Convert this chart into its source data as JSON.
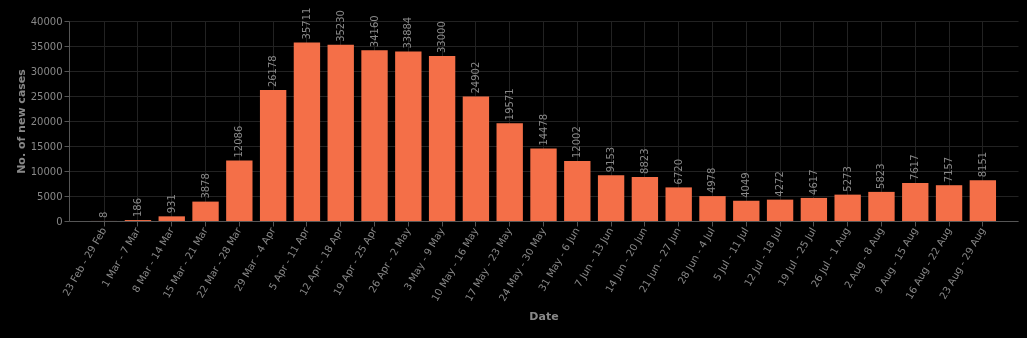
{
  "chart_data": {
    "type": "bar",
    "xlabel": "Date",
    "ylabel": "No. of new cases",
    "categories": [
      "23 Feb - 29 Feb",
      "1 Mar - 7 Mar",
      "8 Mar - 14 Mar",
      "15 Mar - 21 Mar",
      "22 Mar - 28 Mar",
      "29 Mar - 4 Apr",
      "5 Apr - 11 Apr",
      "12 Apr - 18 Apr",
      "19 Apr - 25 Apr",
      "26 Apr - 2 May",
      "3 May - 9 May",
      "10 May - 16 May",
      "17 May - 23 May",
      "24 May - 30 May",
      "31 May - 6 Jun",
      "7 Jun - 13 Jun",
      "14 Jun - 20 Jun",
      "21 Jun - 27 Jun",
      "28 Jun - 4 Jul",
      "5 Jul - 11 Jul",
      "12 Jul - 18 Jul",
      "19 Jul - 25 Jul",
      "26 Jul - 1 Aug",
      "2 Aug - 8 Aug",
      "9 Aug - 15 Aug",
      "16 Aug - 22 Aug",
      "23 Aug - 29 Aug"
    ],
    "values": [
      8,
      186,
      931,
      3878,
      12086,
      26178,
      35711,
      35230,
      34160,
      33884,
      33000,
      24902,
      19571,
      14478,
      12002,
      9153,
      8823,
      6720,
      4978,
      4049,
      4272,
      4617,
      5273,
      5823,
      7617,
      7157,
      8151
    ],
    "color": "#f46f48",
    "ylim": [
      0,
      40000
    ],
    "yticks": [
      0,
      5000,
      10000,
      15000,
      20000,
      25000,
      30000,
      35000,
      40000
    ],
    "grid": true,
    "data_labels": true
  }
}
